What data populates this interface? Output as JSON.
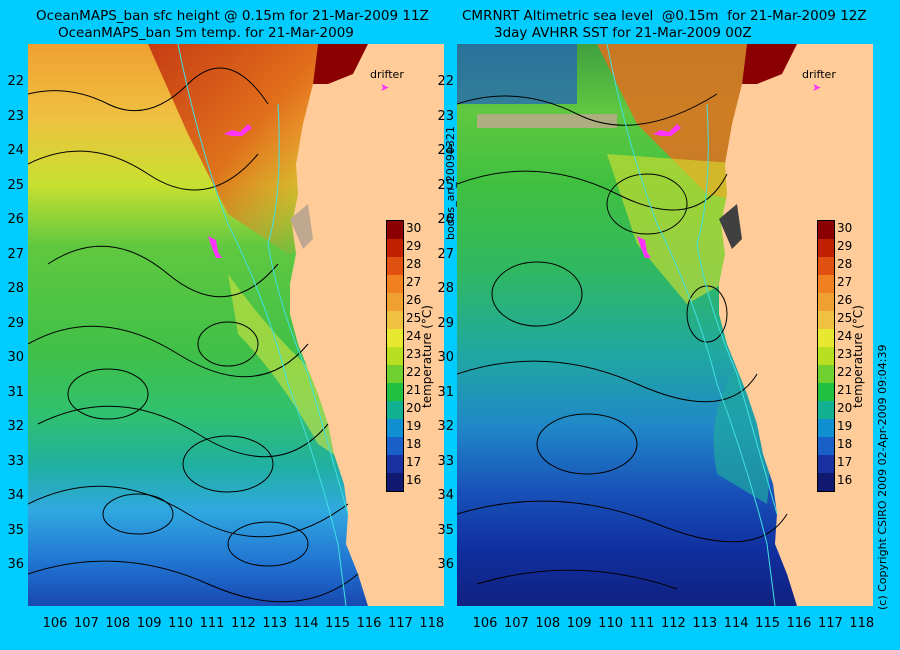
{
  "left": {
    "title_line1": "OceanMAPS_ban sfc height @ 0.15m for 21-Mar-2009 11Z",
    "title_line2": "OceanMAPS_ban 5m temp. for 21-Mar-2009"
  },
  "right": {
    "title_line1": "CMRNRT Altimetric sea level  @0.15m  for 21-Mar-2009 12Z",
    "title_line2": "3day AVHRR SST for 21-Mar-2009 00Z"
  },
  "legend": {
    "drifter": "drifter",
    "drifter_color": "#ff33ff"
  },
  "middle_label": "bodas_an_20090321",
  "right_edge_label": "(c) Copyright CSIRO 2009   02-Apr-2009 09:04:39",
  "colorbar": {
    "title": "temperature (°C)",
    "ticks": [
      "30",
      "29",
      "28",
      "27",
      "26",
      "25",
      "24",
      "23",
      "22",
      "21",
      "20",
      "19",
      "18",
      "17",
      "16"
    ],
    "colors": [
      "#8b0000",
      "#c02000",
      "#e05010",
      "#f08020",
      "#f0a030",
      "#f0c040",
      "#e8e830",
      "#b8e020",
      "#70d030",
      "#20c040",
      "#10b090",
      "#1090d0",
      "#1860c8",
      "#1830a0",
      "#101870"
    ]
  },
  "lat_ticks": [
    "22",
    "23",
    "24",
    "25",
    "26",
    "27",
    "28",
    "29",
    "30",
    "31",
    "32",
    "33",
    "34",
    "35",
    "36"
  ],
  "lon_ticks": [
    "106",
    "107",
    "108",
    "109",
    "110",
    "111",
    "112",
    "113",
    "114",
    "115",
    "116",
    "117",
    "118"
  ],
  "colors": {
    "background": "#00ccff",
    "land": "#ffcc99",
    "contour": "#000000",
    "bathymetry": "#40e0e0",
    "missing": "#c0a890"
  }
}
